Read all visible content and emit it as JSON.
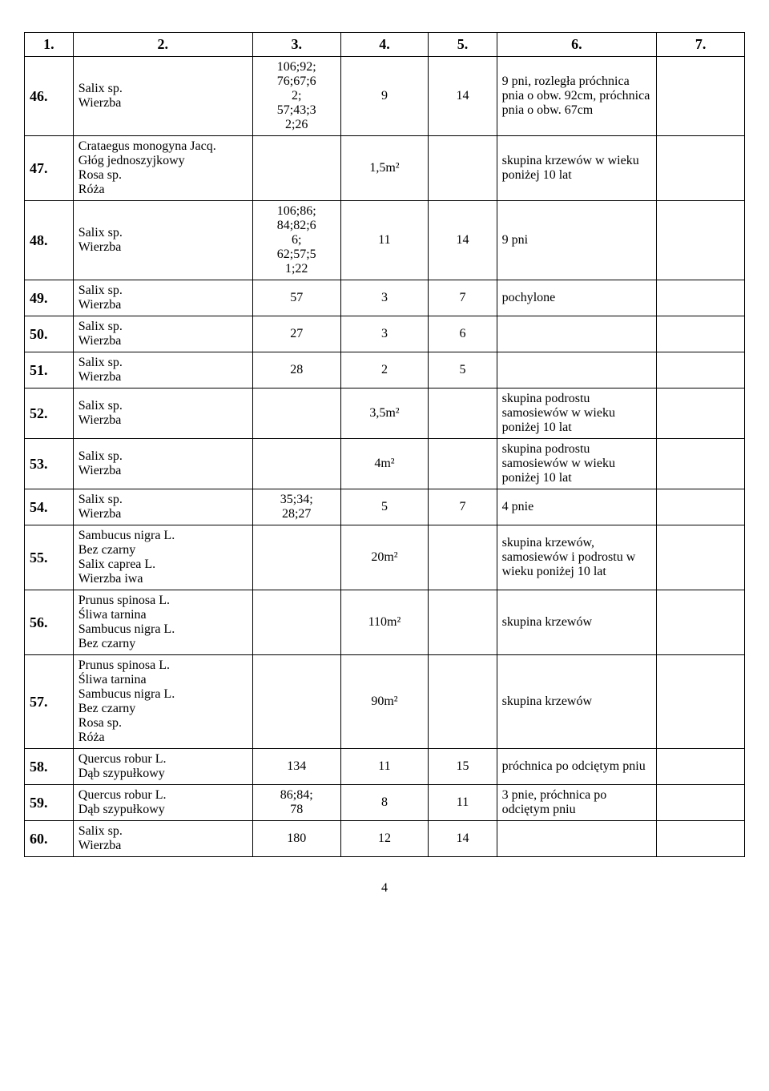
{
  "table": {
    "header": [
      "1.",
      "2.",
      "3.",
      "4.",
      "5.",
      "6.",
      "7."
    ],
    "col_classes": [
      "col-1",
      "col-2",
      "col-3",
      "col-4",
      "col-5",
      "col-6",
      "col-7"
    ],
    "rows": [
      {
        "num": "46.",
        "species": "Salix sp.\nWierzba",
        "c3": "106;92;\n76;67;6\n2;\n57;43;3\n2;26",
        "c4": "9",
        "c5": "14",
        "c6": "9 pni, rozległa próchnica pnia o obw. 92cm, próchnica pnia o obw. 67cm",
        "c7": ""
      },
      {
        "num": "47.",
        "species": "Crataegus monogyna Jacq.\nGłóg jednoszyjkowy\nRosa sp.\nRóża",
        "c3": "",
        "c4": "1,5m²",
        "c5": "",
        "c6": "skupina krzewów w wieku poniżej 10 lat",
        "c7": ""
      },
      {
        "num": "48.",
        "species": "Salix sp.\nWierzba",
        "c3": "106;86;\n84;82;6\n6;\n62;57;5\n1;22",
        "c4": "11",
        "c5": "14",
        "c6": "9 pni",
        "c7": ""
      },
      {
        "num": "49.",
        "species": "Salix sp.\nWierzba",
        "c3": "57",
        "c4": "3",
        "c5": "7",
        "c6": "pochylone",
        "c7": ""
      },
      {
        "num": "50.",
        "species": "Salix sp.\nWierzba",
        "c3": "27",
        "c4": "3",
        "c5": "6",
        "c6": "",
        "c7": ""
      },
      {
        "num": "51.",
        "species": "Salix sp.\nWierzba",
        "c3": "28",
        "c4": "2",
        "c5": "5",
        "c6": "",
        "c7": ""
      },
      {
        "num": "52.",
        "species": "Salix sp.\nWierzba",
        "c3": "",
        "c4": "3,5m²",
        "c5": "",
        "c6": "skupina podrostu samosiewów w wieku poniżej 10 lat",
        "c7": ""
      },
      {
        "num": "53.",
        "species": "Salix sp.\nWierzba",
        "c3": "",
        "c4": "4m²",
        "c5": "",
        "c6": "skupina podrostu samosiewów w wieku poniżej 10 lat",
        "c7": ""
      },
      {
        "num": "54.",
        "species": "Salix sp.\nWierzba",
        "c3": "35;34;\n28;27",
        "c4": "5",
        "c5": "7",
        "c6": "4 pnie",
        "c7": ""
      },
      {
        "num": "55.",
        "species": "Sambucus nigra L.\nBez czarny\nSalix caprea L.\nWierzba iwa",
        "c3": "",
        "c4": "20m²",
        "c5": "",
        "c6": "skupina krzewów, samosiewów i podrostu w wieku poniżej 10 lat",
        "c7": ""
      },
      {
        "num": "56.",
        "species": "Prunus spinosa L.\nŚliwa tarnina\nSambucus nigra L.\nBez czarny",
        "c3": "",
        "c4": "110m²",
        "c5": "",
        "c6": "skupina krzewów",
        "c7": ""
      },
      {
        "num": "57.",
        "species": "Prunus spinosa L.\nŚliwa tarnina\nSambucus nigra L.\nBez czarny\nRosa sp.\nRóża",
        "c3": "",
        "c4": "90m²",
        "c5": "",
        "c6": "skupina krzewów",
        "c7": ""
      },
      {
        "num": "58.",
        "species": "Quercus robur L.\nDąb szypułkowy",
        "c3": "134",
        "c4": "11",
        "c5": "15",
        "c6": "próchnica po odciętym pniu",
        "c7": ""
      },
      {
        "num": "59.",
        "species": "Quercus robur L.\nDąb szypułkowy",
        "c3": "86;84;\n78",
        "c4": "8",
        "c5": "11",
        "c6": "3 pnie, próchnica po odciętym pniu",
        "c7": ""
      },
      {
        "num": "60.",
        "species": "Salix sp.\nWierzba",
        "c3": "180",
        "c4": "12",
        "c5": "14",
        "c6": "",
        "c7": ""
      }
    ]
  },
  "page_number": "4"
}
